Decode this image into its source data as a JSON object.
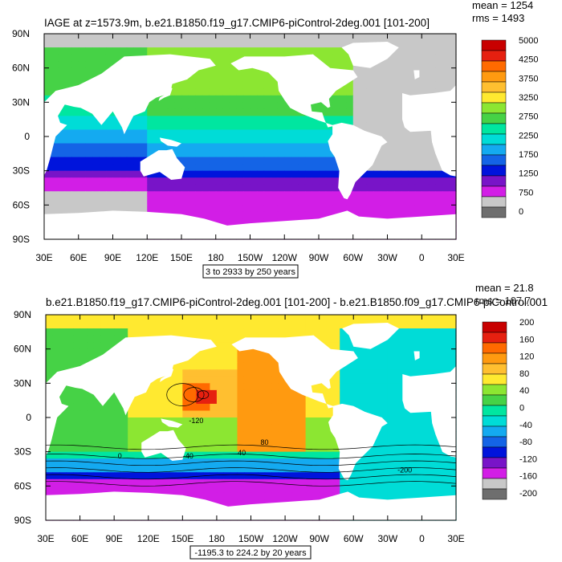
{
  "panels": [
    {
      "title": "IAGE at z=1573.9m, b.e21.B1850.f19_g17.CMIP6-piControl-2deg.001 [101-200]",
      "stats": [
        "mean = 1254",
        "rms = 1493"
      ],
      "range_note": "3 to 2933 by 250 years"
    },
    {
      "title": "b.e21.B1850.f19_g17.CMIP6-piControl-2deg.001 [101-200] - b.e21.B1850.f09_g17.CMIP6-piControl.001",
      "stats": [
        "mean = 21.8",
        "rms = 107.7"
      ],
      "range_note": "-1195.3 to 224.2 by 20 years"
    }
  ],
  "chart_data": [
    {
      "type": "heatmap",
      "title": "IAGE at z=1573.9m, b.e21.B1850.f19_g17.CMIP6-piControl-2deg.001 [101-200]",
      "variable": "IAGE",
      "units": "years",
      "xlabel": "",
      "ylabel": "",
      "xlim": [
        30,
        390
      ],
      "ylim": [
        -90,
        90
      ],
      "x_ticks": [
        "30E",
        "60E",
        "90E",
        "120E",
        "150E",
        "180",
        "150W",
        "120W",
        "90W",
        "60W",
        "30W",
        "0",
        "30E"
      ],
      "y_ticks": [
        "90N",
        "60N",
        "30N",
        "0",
        "30S",
        "60S",
        "90S"
      ],
      "colorbar": {
        "labels": [
          "5000",
          "4250",
          "3750",
          "3250",
          "2750",
          "2250",
          "1750",
          "1250",
          "750",
          "0"
        ],
        "colors": [
          "#c80000",
          "#e62010",
          "#ff6a00",
          "#ff9a10",
          "#ffbf30",
          "#ffe930",
          "#8ce632",
          "#46d246",
          "#00e6a0",
          "#00dcd7",
          "#14aaf0",
          "#1464e6",
          "#0014dc",
          "#7814c8",
          "#d21ee6",
          "#c8c8c8",
          "#6e6e6e"
        ]
      },
      "stats": {
        "mean": 1254,
        "rms": 1493
      },
      "contour_info": "3 to 2933 by 250 years"
    },
    {
      "type": "heatmap",
      "title": "b.e21.B1850.f19_g17.CMIP6-piControl-2deg.001 [101-200] - b.e21.B1850.f09_g17.CMIP6-piControl.001",
      "variable": "IAGE difference",
      "units": "years",
      "xlabel": "",
      "ylabel": "",
      "xlim": [
        30,
        390
      ],
      "ylim": [
        -90,
        90
      ],
      "x_ticks": [
        "30E",
        "60E",
        "90E",
        "120E",
        "150E",
        "180",
        "150W",
        "120W",
        "90W",
        "60W",
        "30W",
        "0",
        "30E"
      ],
      "y_ticks": [
        "90N",
        "60N",
        "30N",
        "0",
        "30S",
        "60S",
        "90S"
      ],
      "colorbar": {
        "labels": [
          "200",
          "160",
          "120",
          "80",
          "40",
          "0",
          "-40",
          "-80",
          "-120",
          "-160",
          "-200"
        ],
        "colors": [
          "#c80000",
          "#e62010",
          "#ff6a00",
          "#ff9a10",
          "#ffbf30",
          "#ffe930",
          "#8ce632",
          "#46d246",
          "#00e6a0",
          "#00dcd7",
          "#14aaf0",
          "#1464e6",
          "#0014dc",
          "#7814c8",
          "#d21ee6",
          "#c8c8c8",
          "#6e6e6e"
        ]
      },
      "contour_labels": [
        "-120",
        "80",
        "40",
        "0",
        "-40",
        "-200"
      ],
      "stats": {
        "mean": 21.8,
        "rms": 107.7
      },
      "contour_info": "-1195.3 to 224.2 by 20 years"
    }
  ]
}
